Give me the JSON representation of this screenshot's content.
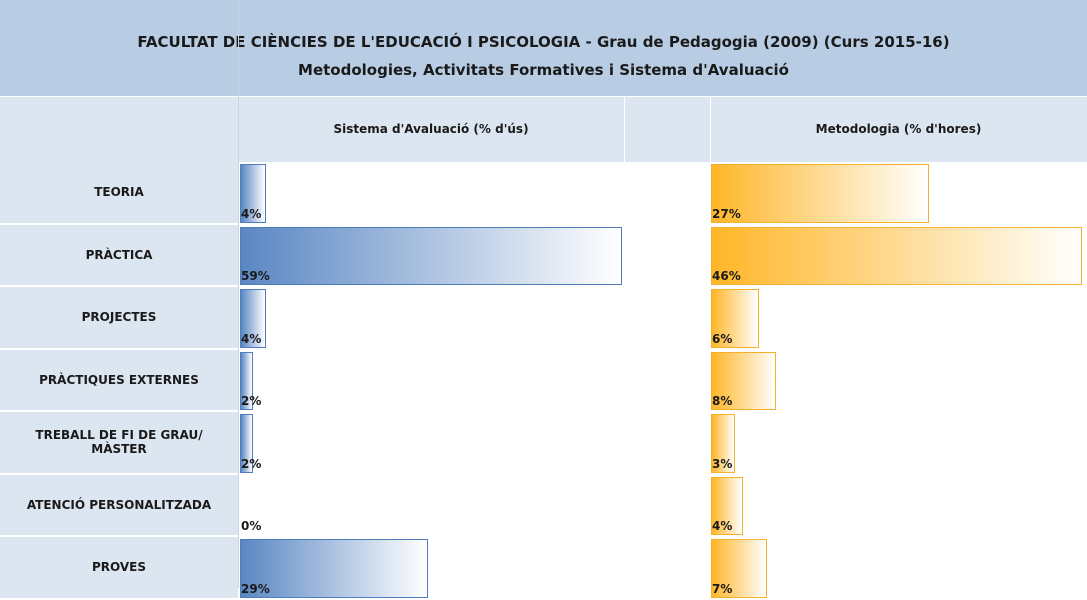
{
  "header": {
    "title": "FACULTAT DE CIÈNCIES DE L'EDUCACIÓ I PSICOLOGIA - Grau de Pedagogia (2009) (Curs 2015-16)",
    "subtitle": "Metodologies, Activitats Formatives i Sistema d'Avaluació"
  },
  "columns": [
    "Sistema d'Avaluació (% d'ús)",
    "Metodologia (% d'hores)"
  ],
  "rows": [
    {
      "label": [
        "TEORIA"
      ],
      "evaluation": 4,
      "evaluation_label": "4%",
      "methodology": 27,
      "methodology_label": "27%"
    },
    {
      "label": [
        "PRÀCTICA"
      ],
      "evaluation": 59,
      "evaluation_label": "59%",
      "methodology": 46,
      "methodology_label": "46%"
    },
    {
      "label": [
        "PROJECTES"
      ],
      "evaluation": 4,
      "evaluation_label": "4%",
      "methodology": 6,
      "methodology_label": "6%"
    },
    {
      "label": [
        "PRÀCTIQUES EXTERNES"
      ],
      "evaluation": 2,
      "evaluation_label": "2%",
      "methodology": 8,
      "methodology_label": "8%"
    },
    {
      "label": [
        "TREBALL DE FI DE GRAU/",
        "MÀSTER"
      ],
      "evaluation": 2,
      "evaluation_label": "2%",
      "methodology": 3,
      "methodology_label": "3%"
    },
    {
      "label": [
        "ATENCIÓ PERSONALITZADA"
      ],
      "evaluation": 0,
      "evaluation_label": "0%",
      "methodology": 4,
      "methodology_label": "4%"
    },
    {
      "label": [
        "PROVES"
      ],
      "evaluation": 29,
      "evaluation_label": "29%",
      "methodology": 7,
      "methodology_label": "7%"
    }
  ]
}
